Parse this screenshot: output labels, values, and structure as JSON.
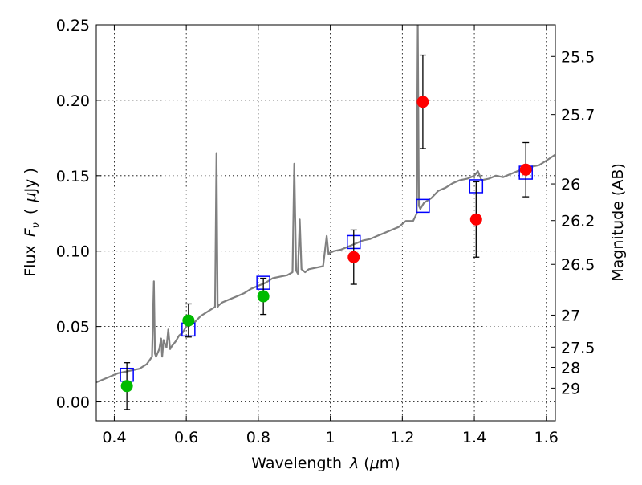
{
  "chart_data": {
    "type": "scatter",
    "xlabel": "Wavelength",
    "xlabel_symbol": "λ",
    "xlabel_unit_open": "(",
    "xlabel_unit_mu": "μ",
    "xlabel_unit_rest": "m)",
    "ylabel_prefix": "Flux",
    "ylabel_symbol": "F",
    "ylabel_subscript": "ν",
    "ylabel_unit_open": "(",
    "ylabel_unit_mu": "μ",
    "ylabel_unit_rest": "Jy )",
    "y2label": "Magnitude (AB)",
    "xlim": [
      0.35,
      1.625
    ],
    "ylim": [
      -0.0125,
      0.25
    ],
    "grid": true,
    "x_ticks": [
      "0.4",
      "0.6",
      "0.8",
      "1",
      "1.2",
      "1.4",
      "1.6"
    ],
    "y_ticks": [
      "0.00",
      "0.05",
      "0.10",
      "0.15",
      "0.20",
      "0.25"
    ],
    "mag_ticks": [
      "25.5",
      "25.7",
      "26",
      "26.2",
      "26.5",
      "27",
      "27.5",
      "28",
      "29"
    ],
    "colors": {
      "spectrum": "#808080",
      "model_box": "#0000ff",
      "green": "#00bb00",
      "red": "#ff0000",
      "error": "#000000"
    },
    "series": [
      {
        "marker": "circle",
        "color": "#00bb00",
        "points": [
          {
            "x": 0.435,
            "y": 0.0105,
            "err": 0.0155
          },
          {
            "x": 0.606,
            "y": 0.054,
            "err": 0.011
          },
          {
            "x": 0.814,
            "y": 0.07,
            "err": 0.012
          }
        ]
      },
      {
        "marker": "circle",
        "color": "#ff0000",
        "points": [
          {
            "x": 1.065,
            "y": 0.096,
            "err": 0.018
          },
          {
            "x": 1.257,
            "y": 0.199,
            "err": 0.031
          },
          {
            "x": 1.405,
            "y": 0.121,
            "err": 0.025
          },
          {
            "x": 1.543,
            "y": 0.154,
            "err": 0.018
          }
        ]
      },
      {
        "marker": "open-square",
        "color": "#0000ff",
        "points": [
          {
            "x": 0.435,
            "y": 0.018
          },
          {
            "x": 0.606,
            "y": 0.048
          },
          {
            "x": 0.814,
            "y": 0.079
          },
          {
            "x": 1.065,
            "y": 0.106
          },
          {
            "x": 1.257,
            "y": 0.13
          },
          {
            "x": 1.405,
            "y": 0.143
          },
          {
            "x": 1.543,
            "y": 0.152
          }
        ]
      },
      {
        "marker": "line",
        "color": "#808080",
        "x": [
          0.35,
          0.37,
          0.39,
          0.41,
          0.43,
          0.45,
          0.47,
          0.49,
          0.505,
          0.51,
          0.513,
          0.516,
          0.525,
          0.53,
          0.533,
          0.537,
          0.545,
          0.55,
          0.555,
          0.56,
          0.57,
          0.58,
          0.59,
          0.6,
          0.62,
          0.64,
          0.66,
          0.68,
          0.684,
          0.687,
          0.69,
          0.7,
          0.72,
          0.74,
          0.76,
          0.78,
          0.8,
          0.82,
          0.84,
          0.86,
          0.88,
          0.895,
          0.9,
          0.905,
          0.91,
          0.915,
          0.92,
          0.925,
          0.93,
          0.94,
          0.96,
          0.98,
          0.99,
          0.995,
          1.0,
          1.01,
          1.03,
          1.05,
          1.07,
          1.09,
          1.11,
          1.13,
          1.15,
          1.17,
          1.19,
          1.21,
          1.23,
          1.24,
          1.243,
          1.246,
          1.25,
          1.26,
          1.28,
          1.3,
          1.32,
          1.34,
          1.36,
          1.38,
          1.4,
          1.41,
          1.42,
          1.44,
          1.46,
          1.48,
          1.5,
          1.52,
          1.54,
          1.56,
          1.58,
          1.6,
          1.625
        ],
        "y": [
          0.013,
          0.015,
          0.017,
          0.019,
          0.02,
          0.021,
          0.022,
          0.025,
          0.03,
          0.08,
          0.032,
          0.03,
          0.035,
          0.042,
          0.03,
          0.041,
          0.036,
          0.048,
          0.035,
          0.037,
          0.04,
          0.044,
          0.046,
          0.05,
          0.052,
          0.057,
          0.06,
          0.063,
          0.165,
          0.063,
          0.064,
          0.066,
          0.068,
          0.07,
          0.072,
          0.075,
          0.077,
          0.079,
          0.082,
          0.083,
          0.084,
          0.086,
          0.158,
          0.087,
          0.085,
          0.121,
          0.088,
          0.087,
          0.086,
          0.088,
          0.089,
          0.09,
          0.11,
          0.098,
          0.099,
          0.1,
          0.101,
          0.103,
          0.105,
          0.107,
          0.108,
          0.11,
          0.112,
          0.114,
          0.116,
          0.12,
          0.12,
          0.125,
          0.25,
          0.13,
          0.128,
          0.132,
          0.135,
          0.14,
          0.142,
          0.145,
          0.147,
          0.148,
          0.15,
          0.153,
          0.147,
          0.148,
          0.15,
          0.149,
          0.151,
          0.153,
          0.155,
          0.156,
          0.157,
          0.16,
          0.164
        ]
      }
    ]
  }
}
